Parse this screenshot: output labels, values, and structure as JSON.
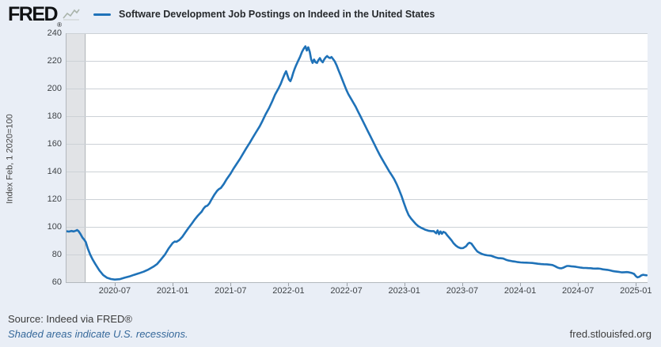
{
  "header": {
    "logo_text": "FRED",
    "logo_registered": "®",
    "legend_label": "Software Development Job Postings on Indeed in the United States"
  },
  "icons": {
    "logo_chart": "line-chart-sparkline"
  },
  "y_axis": {
    "title": "Index Feb, 1 2020=100",
    "ticks": [
      240,
      220,
      200,
      180,
      160,
      140,
      120,
      100,
      80,
      60
    ]
  },
  "x_axis": {
    "ticks": [
      {
        "m": 5,
        "label": "2020-07"
      },
      {
        "m": 11,
        "label": "2021-01"
      },
      {
        "m": 17,
        "label": "2021-07"
      },
      {
        "m": 23,
        "label": "2022-01"
      },
      {
        "m": 29,
        "label": "2022-07"
      },
      {
        "m": 35,
        "label": "2023-01"
      },
      {
        "m": 41,
        "label": "2023-07"
      },
      {
        "m": 47,
        "label": "2024-01"
      },
      {
        "m": 53,
        "label": "2024-07"
      },
      {
        "m": 59,
        "label": "2025-01"
      }
    ]
  },
  "footer": {
    "source": "Source: Indeed via FRED®",
    "note": "Shaded areas indicate U.S. recessions.",
    "site": "fred.stlouisfed.org"
  },
  "colors": {
    "line": "#1f72b8",
    "background": "#e9eef6",
    "plot_background": "#ffffff",
    "grid": "#ccd1d6",
    "plot_border": "#b3b8bd",
    "recession_band": "#e1e3e6",
    "recession_band_edge": "#a9aeb4",
    "note_text": "#35689a",
    "footer_text": "#3c3c3c",
    "axis_text": "#3f4347"
  },
  "chart_data": {
    "type": "line",
    "title": "Software Development Job Postings on Indeed in the United States",
    "xlabel": "",
    "ylabel": "Index Feb, 1 2020=100",
    "x_unit": "months since 2020-02-01",
    "xlim": [
      0,
      60.2
    ],
    "ylim": [
      60,
      240
    ],
    "grid": true,
    "legend_position": "top",
    "recession_band": {
      "m_start": 0,
      "m_end": 1.9,
      "meaning": "U.S. recession (COVID-19, 2020)"
    },
    "series_name": "Software Development Job Postings on Indeed in the United States",
    "points": [
      [
        0,
        96.8
      ],
      [
        0.25,
        96.6
      ],
      [
        0.5,
        97
      ],
      [
        0.75,
        96.7
      ],
      [
        1,
        97.3
      ],
      [
        1.1,
        97.7
      ],
      [
        1.25,
        96.9
      ],
      [
        1.45,
        94.8
      ],
      [
        1.65,
        92.3
      ],
      [
        1.85,
        90.6
      ],
      [
        2,
        89
      ],
      [
        2.2,
        84.5
      ],
      [
        2.45,
        80
      ],
      [
        2.7,
        76.5
      ],
      [
        3,
        73
      ],
      [
        3.4,
        68.5
      ],
      [
        3.8,
        65.2
      ],
      [
        4.2,
        63.2
      ],
      [
        4.6,
        62.3
      ],
      [
        5,
        61.9
      ],
      [
        5.5,
        62.2
      ],
      [
        6,
        63.2
      ],
      [
        6.5,
        64.1
      ],
      [
        7,
        65.3
      ],
      [
        7.5,
        66.4
      ],
      [
        8,
        67.6
      ],
      [
        8.5,
        69.2
      ],
      [
        9,
        71.2
      ],
      [
        9.4,
        73.2
      ],
      [
        9.8,
        76.5
      ],
      [
        10.2,
        80
      ],
      [
        10.6,
        84.5
      ],
      [
        11,
        88.3
      ],
      [
        11.2,
        89.4
      ],
      [
        11.4,
        89.2
      ],
      [
        11.7,
        90.6
      ],
      [
        12,
        92.8
      ],
      [
        12.3,
        95.8
      ],
      [
        12.6,
        98.8
      ],
      [
        13,
        102.5
      ],
      [
        13.3,
        105.5
      ],
      [
        13.6,
        108
      ],
      [
        14,
        111
      ],
      [
        14.2,
        113.2
      ],
      [
        14.4,
        114.8
      ],
      [
        14.6,
        115.3
      ],
      [
        14.8,
        117
      ],
      [
        15,
        119.5
      ],
      [
        15.3,
        123
      ],
      [
        15.6,
        126
      ],
      [
        15.8,
        127.3
      ],
      [
        16,
        128.2
      ],
      [
        16.3,
        131
      ],
      [
        16.6,
        134.5
      ],
      [
        17,
        138.5
      ],
      [
        17.3,
        142
      ],
      [
        17.6,
        145.2
      ],
      [
        18,
        149.5
      ],
      [
        18.3,
        153
      ],
      [
        18.6,
        156.5
      ],
      [
        19,
        161
      ],
      [
        19.3,
        164.5
      ],
      [
        19.6,
        168
      ],
      [
        20,
        172.5
      ],
      [
        20.3,
        176.5
      ],
      [
        20.6,
        181
      ],
      [
        21,
        186
      ],
      [
        21.3,
        190.5
      ],
      [
        21.6,
        195.5
      ],
      [
        22,
        200.5
      ],
      [
        22.2,
        203.5
      ],
      [
        22.4,
        207
      ],
      [
        22.6,
        210.5
      ],
      [
        22.75,
        212.5
      ],
      [
        22.9,
        209.5
      ],
      [
        23.05,
        206.5
      ],
      [
        23.2,
        205.3
      ],
      [
        23.35,
        208
      ],
      [
        23.5,
        211.5
      ],
      [
        23.65,
        214.5
      ],
      [
        23.8,
        217
      ],
      [
        24,
        220
      ],
      [
        24.2,
        223
      ],
      [
        24.4,
        226.5
      ],
      [
        24.6,
        229
      ],
      [
        24.75,
        230.5
      ],
      [
        24.9,
        227.5
      ],
      [
        25.05,
        229.8
      ],
      [
        25.2,
        226.5
      ],
      [
        25.35,
        221
      ],
      [
        25.5,
        218.5
      ],
      [
        25.65,
        221
      ],
      [
        25.8,
        219
      ],
      [
        25.95,
        218.5
      ],
      [
        26.1,
        220.5
      ],
      [
        26.25,
        222
      ],
      [
        26.4,
        220
      ],
      [
        26.55,
        219
      ],
      [
        26.7,
        221
      ],
      [
        26.85,
        222.5
      ],
      [
        27,
        223.5
      ],
      [
        27.15,
        222.5
      ],
      [
        27.3,
        222
      ],
      [
        27.45,
        222.8
      ],
      [
        27.6,
        221.5
      ],
      [
        27.8,
        219.5
      ],
      [
        28,
        216.5
      ],
      [
        28.2,
        213
      ],
      [
        28.4,
        209.5
      ],
      [
        28.6,
        206
      ],
      [
        28.8,
        202.5
      ],
      [
        29,
        199
      ],
      [
        29.2,
        196
      ],
      [
        29.45,
        193
      ],
      [
        29.7,
        190
      ],
      [
        29.95,
        187
      ],
      [
        30.2,
        183.5
      ],
      [
        30.45,
        180
      ],
      [
        30.7,
        176.5
      ],
      [
        30.95,
        173
      ],
      [
        31.2,
        169.5
      ],
      [
        31.45,
        166
      ],
      [
        31.7,
        162.5
      ],
      [
        31.95,
        159
      ],
      [
        32.2,
        155.5
      ],
      [
        32.45,
        152
      ],
      [
        32.7,
        149
      ],
      [
        32.95,
        146
      ],
      [
        33.2,
        143
      ],
      [
        33.45,
        140
      ],
      [
        33.7,
        137.3
      ],
      [
        33.95,
        134.5
      ],
      [
        34.2,
        131
      ],
      [
        34.45,
        127
      ],
      [
        34.7,
        122.5
      ],
      [
        34.95,
        117.5
      ],
      [
        35.2,
        112.5
      ],
      [
        35.45,
        108.5
      ],
      [
        35.7,
        106
      ],
      [
        35.95,
        104
      ],
      [
        36.2,
        102
      ],
      [
        36.45,
        100.5
      ],
      [
        36.7,
        99.5
      ],
      [
        36.95,
        98.7
      ],
      [
        37.2,
        97.8
      ],
      [
        37.5,
        97.2
      ],
      [
        37.8,
        96.9
      ],
      [
        38.05,
        96.9
      ],
      [
        38.3,
        95.3
      ],
      [
        38.45,
        97.4
      ],
      [
        38.6,
        94.7
      ],
      [
        38.75,
        96.7
      ],
      [
        38.9,
        95
      ],
      [
        39.05,
        96.4
      ],
      [
        39.25,
        95.7
      ],
      [
        39.45,
        93.8
      ],
      [
        39.65,
        92.3
      ],
      [
        39.9,
        90.2
      ],
      [
        40.1,
        88.2
      ],
      [
        40.35,
        86.4
      ],
      [
        40.6,
        85.2
      ],
      [
        40.85,
        84.6
      ],
      [
        41.1,
        84.7
      ],
      [
        41.4,
        86
      ],
      [
        41.6,
        87.8
      ],
      [
        41.75,
        88.5
      ],
      [
        41.95,
        87.9
      ],
      [
        42.15,
        86
      ],
      [
        42.35,
        84
      ],
      [
        42.55,
        82.3
      ],
      [
        42.75,
        81.4
      ],
      [
        43,
        80.5
      ],
      [
        43.3,
        79.8
      ],
      [
        43.6,
        79.4
      ],
      [
        43.95,
        79.2
      ],
      [
        44.2,
        78.6
      ],
      [
        44.5,
        77.8
      ],
      [
        44.75,
        77.4
      ],
      [
        45,
        77.3
      ],
      [
        45.25,
        77.1
      ],
      [
        45.55,
        76.2
      ],
      [
        45.85,
        75.6
      ],
      [
        46.15,
        75.2
      ],
      [
        46.45,
        74.9
      ],
      [
        46.75,
        74.5
      ],
      [
        47.05,
        74.3
      ],
      [
        47.35,
        74.2
      ],
      [
        47.65,
        74.1
      ],
      [
        47.95,
        74
      ],
      [
        48.25,
        73.9
      ],
      [
        48.55,
        73.6
      ],
      [
        48.85,
        73.3
      ],
      [
        49.15,
        73.1
      ],
      [
        49.45,
        73
      ],
      [
        49.75,
        72.9
      ],
      [
        50.05,
        72.7
      ],
      [
        50.35,
        72.4
      ],
      [
        50.6,
        71.6
      ],
      [
        50.85,
        70.7
      ],
      [
        51.05,
        70.2
      ],
      [
        51.25,
        70
      ],
      [
        51.45,
        70.4
      ],
      [
        51.65,
        71.1
      ],
      [
        51.85,
        71.7
      ],
      [
        52.05,
        71.7
      ],
      [
        52.3,
        71.5
      ],
      [
        52.55,
        71.3
      ],
      [
        52.8,
        71.1
      ],
      [
        53.05,
        70.8
      ],
      [
        53.3,
        70.5
      ],
      [
        53.55,
        70.3
      ],
      [
        53.8,
        70.3
      ],
      [
        54.05,
        70.2
      ],
      [
        54.3,
        70.1
      ],
      [
        54.55,
        69.9
      ],
      [
        54.8,
        69.8
      ],
      [
        55.05,
        69.9
      ],
      [
        55.3,
        69.7
      ],
      [
        55.55,
        69.3
      ],
      [
        55.8,
        69.1
      ],
      [
        56.05,
        68.9
      ],
      [
        56.3,
        68.6
      ],
      [
        56.55,
        68.1
      ],
      [
        56.8,
        67.8
      ],
      [
        57.05,
        67.6
      ],
      [
        57.3,
        67.4
      ],
      [
        57.55,
        67.1
      ],
      [
        57.8,
        67.2
      ],
      [
        58.05,
        67.3
      ],
      [
        58.3,
        67.1
      ],
      [
        58.55,
        66.7
      ],
      [
        58.8,
        66
      ],
      [
        59,
        64.3
      ],
      [
        59.15,
        63.5
      ],
      [
        59.35,
        63.9
      ],
      [
        59.55,
        64.9
      ],
      [
        59.75,
        65.4
      ],
      [
        59.95,
        65.1
      ],
      [
        60.1,
        65
      ]
    ]
  }
}
